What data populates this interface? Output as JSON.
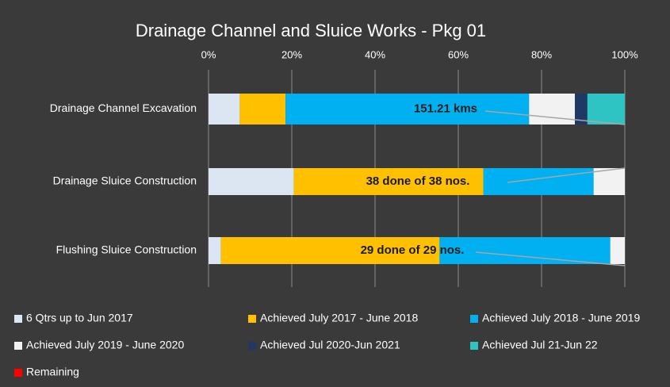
{
  "chart_data": {
    "type": "stacked_bar_horizontal",
    "title": "Drainage Channel and Sluice Works - Pkg 01",
    "categories": [
      "Drainage Channel Excavation",
      "Drainage Sluice Construction",
      "Flushing Sluice Construction"
    ],
    "series": [
      {
        "name": "6 Qtrs up to Jun 2017",
        "color": "#dce6f2",
        "values": [
          7.5,
          20.5,
          3
        ]
      },
      {
        "name": "Achieved July 2017 - June 2018",
        "color": "#ffc000",
        "values": [
          11,
          45.5,
          52.5
        ]
      },
      {
        "name": "Achieved July 2018 - June 2019",
        "color": "#00b0f0",
        "values": [
          58.5,
          26.5,
          41
        ]
      },
      {
        "name": "Achieved July 2019 - June 2020",
        "color": "#f2f2f2",
        "values": [
          11,
          7.5,
          3.5
        ]
      },
      {
        "name": "Achieved Jul 2020-Jun 2021",
        "color": "#1f3864",
        "values": [
          3,
          0,
          0
        ]
      },
      {
        "name": "Achieved Jul 21-Jun 22",
        "color": "#2ec4c4",
        "values": [
          9,
          0,
          0
        ]
      },
      {
        "name": "Remaining",
        "color": "#ff0000",
        "values": [
          0,
          0,
          0
        ]
      }
    ],
    "annotations": [
      "151.21 kms",
      "38 done of 38 nos.",
      "29 done of 29 nos."
    ],
    "xlim": [
      0,
      100
    ],
    "xticks": [
      {
        "value": 0,
        "label": "0%"
      },
      {
        "value": 20,
        "label": "20%"
      },
      {
        "value": 40,
        "label": "40%"
      },
      {
        "value": 60,
        "label": "60%"
      },
      {
        "value": 80,
        "label": "80%"
      },
      {
        "value": 100,
        "label": "100%"
      }
    ],
    "grid": true
  }
}
